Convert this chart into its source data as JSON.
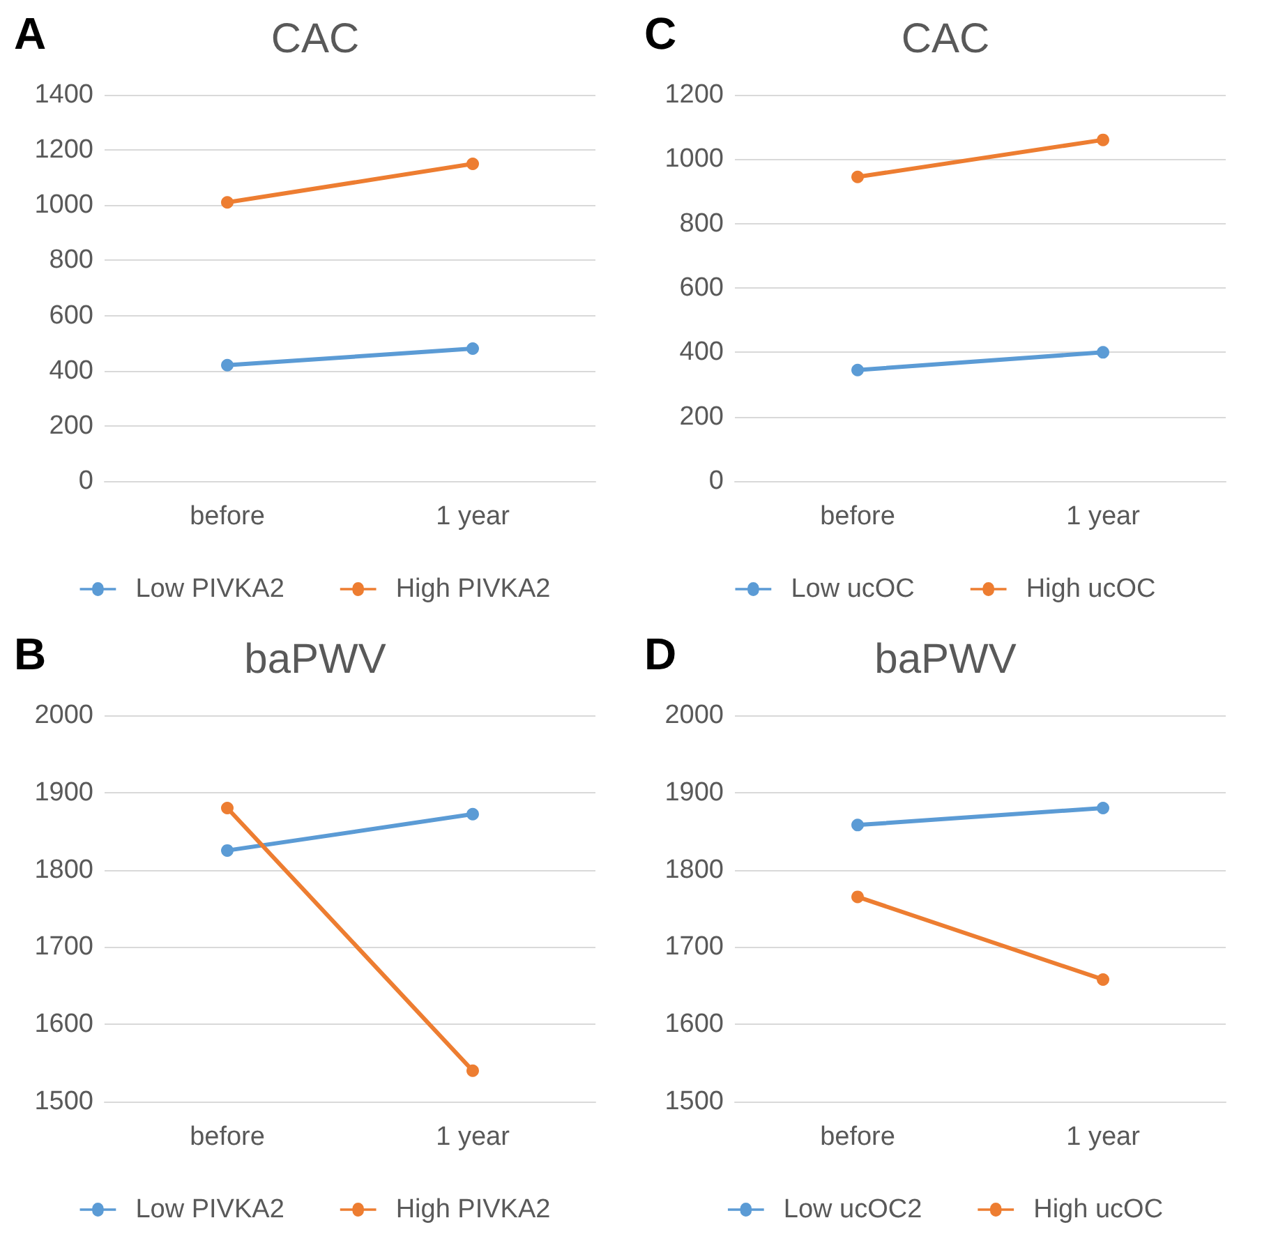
{
  "chart_data": [
    {
      "type": "line",
      "title": "CAC",
      "annotations": [
        "A"
      ],
      "categories": [
        "before",
        "1 year"
      ],
      "ylim": [
        0,
        1400
      ],
      "yticks": [
        0,
        200,
        400,
        600,
        800,
        1000,
        1200,
        1400
      ],
      "grid": "y",
      "legend": "bottom",
      "marker": "circle",
      "line_style": "solid",
      "series": [
        {
          "name": "Low PIVKA2",
          "color": "#5b9bd5",
          "values": [
            420,
            480
          ]
        },
        {
          "name": "High PIVKA2",
          "color": "#ed7d31",
          "values": [
            1010,
            1150
          ]
        }
      ]
    },
    {
      "type": "line",
      "title": "CAC",
      "annotations": [
        "C"
      ],
      "categories": [
        "before",
        "1 year"
      ],
      "ylim": [
        0,
        1200
      ],
      "yticks": [
        0,
        200,
        400,
        600,
        800,
        1000,
        1200
      ],
      "grid": "y",
      "legend": "bottom",
      "marker": "circle",
      "line_style": "solid",
      "series": [
        {
          "name": "Low ucOC",
          "color": "#5b9bd5",
          "values": [
            345,
            400
          ]
        },
        {
          "name": "High ucOC",
          "color": "#ed7d31",
          "values": [
            945,
            1060
          ]
        }
      ]
    },
    {
      "type": "line",
      "title": "baPWV",
      "annotations": [
        "B"
      ],
      "categories": [
        "before",
        "1 year"
      ],
      "ylim": [
        1500,
        2000
      ],
      "yticks": [
        1500,
        1600,
        1700,
        1800,
        1900,
        2000
      ],
      "grid": "y",
      "legend": "bottom",
      "marker": "circle",
      "line_style": "solid",
      "series": [
        {
          "name": "Low PIVKA2",
          "color": "#5b9bd5",
          "values": [
            1825,
            1872
          ]
        },
        {
          "name": "High PIVKA2",
          "color": "#ed7d31",
          "values": [
            1880,
            1540
          ]
        }
      ]
    },
    {
      "type": "line",
      "title": "baPWV",
      "annotations": [
        "D"
      ],
      "categories": [
        "before",
        "1 year"
      ],
      "ylim": [
        1500,
        2000
      ],
      "yticks": [
        1500,
        1600,
        1700,
        1800,
        1900,
        2000
      ],
      "grid": "y",
      "legend": "bottom",
      "marker": "circle",
      "line_style": "solid",
      "series": [
        {
          "name": "Low ucOC2",
          "color": "#5b9bd5",
          "values": [
            1858,
            1880
          ]
        },
        {
          "name": "High ucOC",
          "color": "#ed7d31",
          "values": [
            1765,
            1658
          ]
        }
      ]
    }
  ]
}
